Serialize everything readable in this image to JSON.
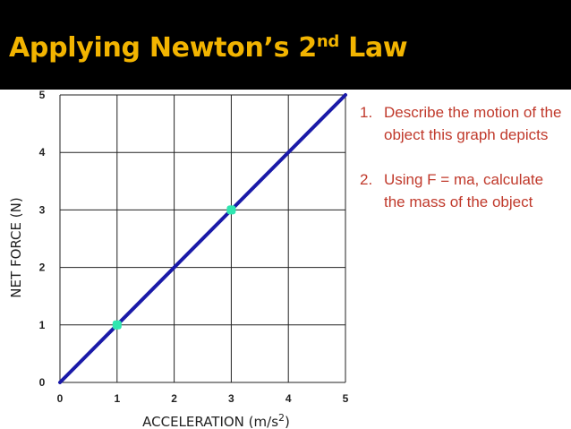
{
  "slide": {
    "title_main": "Applying Newton’s 2",
    "title_sup": "nd",
    "title_end": " Law"
  },
  "questions": [
    {
      "num": "1.",
      "text": "Describe the motion of the object this graph depicts"
    },
    {
      "num": "2.",
      "text": "Using F = ma, calculate the mass of the object"
    }
  ],
  "colors": {
    "title": "#f2b400",
    "line": "#1a1aa8",
    "points": "#2ee6b0",
    "question_text": "#c0392b"
  },
  "chart_data": {
    "type": "line",
    "xlabel": "ACCELERATION (m/s",
    "xlabel_sup": "2",
    "xlabel_end": ")",
    "ylabel": "NET FORCE (N)",
    "xlim": [
      0,
      5
    ],
    "ylim": [
      0,
      5
    ],
    "x_ticks": [
      "0",
      "1",
      "2",
      "3",
      "4",
      "5"
    ],
    "y_ticks": [
      "0",
      "1",
      "2",
      "3",
      "4",
      "5"
    ],
    "grid": true,
    "series": [
      {
        "x": [
          0,
          5
        ],
        "y": [
          0,
          5
        ]
      }
    ],
    "highlighted_points": [
      {
        "x": 1,
        "y": 1
      },
      {
        "x": 3,
        "y": 3
      }
    ]
  }
}
